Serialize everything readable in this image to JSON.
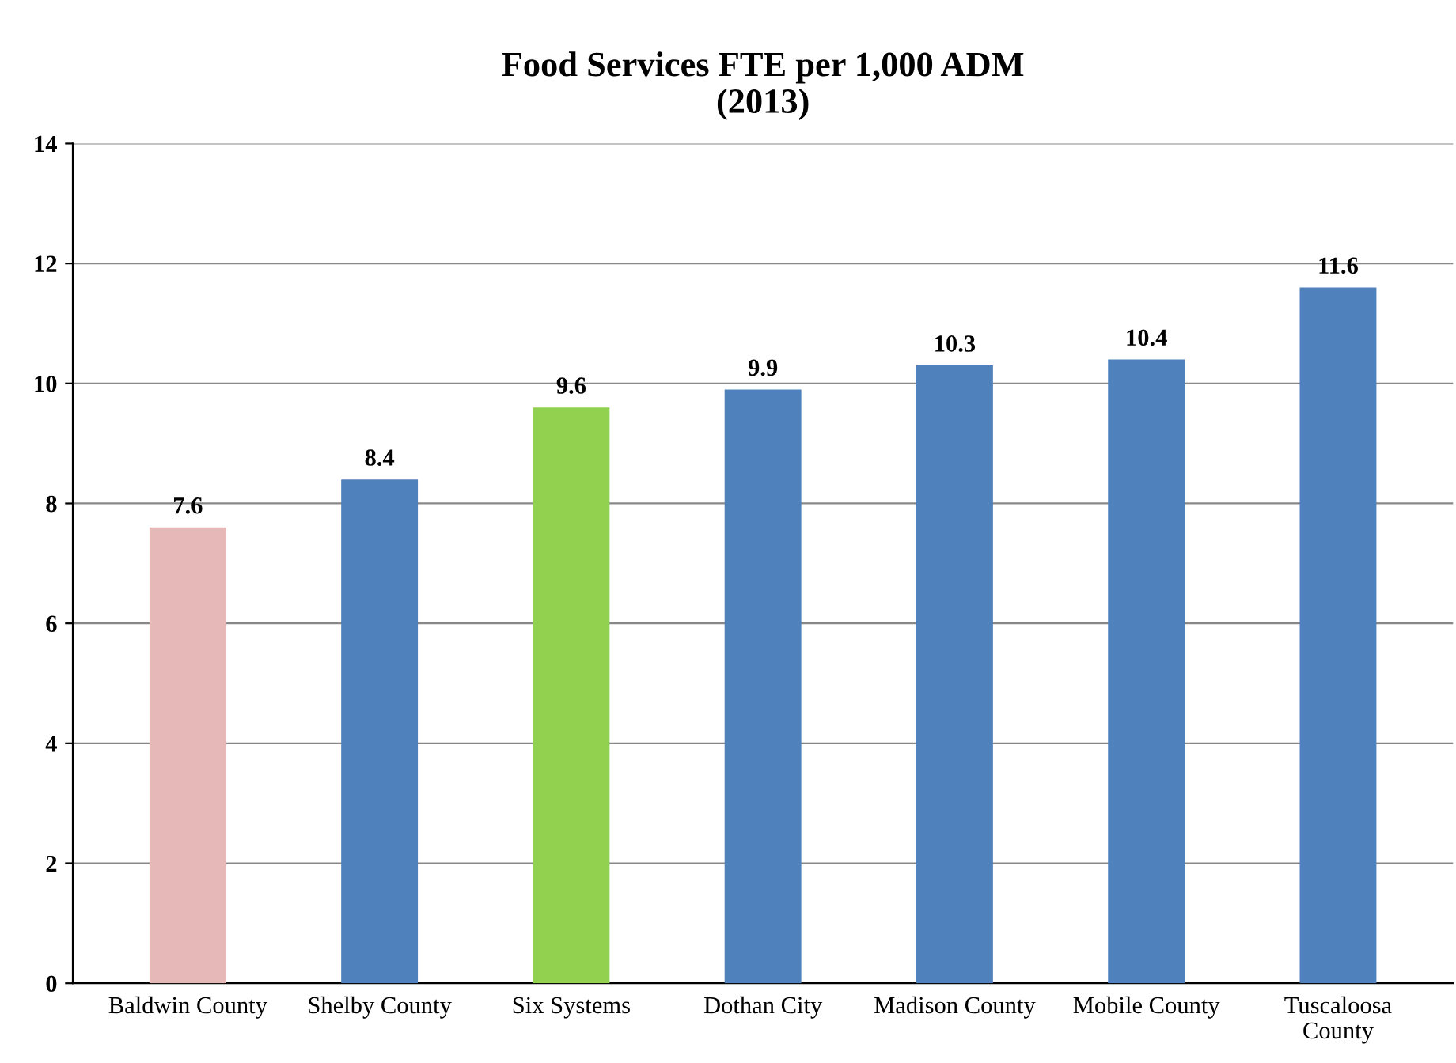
{
  "chart_data": {
    "type": "bar",
    "title": "Food Services FTE per 1,000 ADM\n(2013)",
    "categories": [
      "Baldwin County",
      "Shelby County",
      "Six Systems",
      "Dothan City",
      "Madison County",
      "Mobile County",
      "Tuscaloosa\nCounty"
    ],
    "values": [
      7.6,
      8.4,
      9.6,
      9.9,
      10.3,
      10.4,
      11.6
    ],
    "colors": [
      "#e6b9b8",
      "#4f81bd",
      "#92d050",
      "#4f81bd",
      "#4f81bd",
      "#4f81bd",
      "#4f81bd"
    ],
    "ylim": [
      0,
      14
    ],
    "yticks": [
      0,
      2,
      4,
      6,
      8,
      10,
      12,
      14
    ],
    "grid": "y",
    "data_labels": true
  }
}
